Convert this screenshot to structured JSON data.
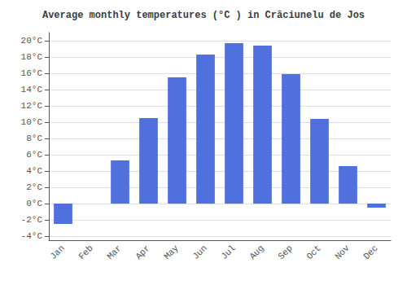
{
  "chart_data": {
    "type": "bar",
    "title": "Average monthly temperatures (°C ) in Crăciunelu de Jos",
    "categories": [
      "Jan",
      "Feb",
      "Mar",
      "Apr",
      "May",
      "Jun",
      "Jul",
      "Aug",
      "Sep",
      "Oct",
      "Nov",
      "Dec"
    ],
    "values": [
      -2.5,
      0.0,
      5.3,
      10.5,
      15.5,
      18.3,
      19.7,
      19.4,
      15.9,
      10.4,
      4.6,
      -0.5
    ],
    "ylim": [
      -4.5,
      21.0
    ],
    "yticks": [
      {
        "value": -4,
        "label": "-4°C"
      },
      {
        "value": -2,
        "label": "-2°C"
      },
      {
        "value": 0,
        "label": "0°C"
      },
      {
        "value": 2,
        "label": "2°C"
      },
      {
        "value": 4,
        "label": "4°C"
      },
      {
        "value": 6,
        "label": "6°C"
      },
      {
        "value": 8,
        "label": "8°C"
      },
      {
        "value": 10,
        "label": "10°C"
      },
      {
        "value": 12,
        "label": "12°C"
      },
      {
        "value": 14,
        "label": "14°C"
      },
      {
        "value": 16,
        "label": "16°C"
      },
      {
        "value": 18,
        "label": "18°C"
      },
      {
        "value": 20,
        "label": "20°C"
      }
    ],
    "grid": true
  }
}
